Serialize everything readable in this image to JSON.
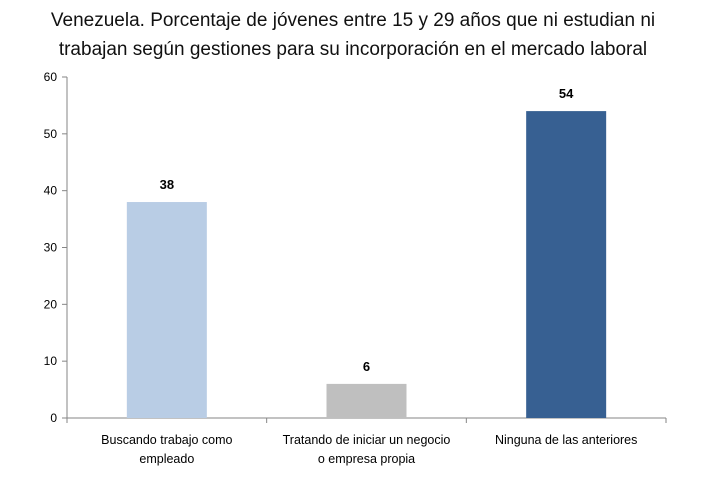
{
  "chart_data": {
    "type": "bar",
    "title_lines": [
      "Venezuela. Porcentaje de jóvenes entre 15 y 29 años que ni estudian ni",
      "trabajan según gestiones para su incorporación en el mercado laboral"
    ],
    "categories": [
      [
        "Buscando trabajo como",
        "empleado"
      ],
      [
        "Tratando de iniciar un negocio",
        "o empresa propia"
      ],
      [
        "Ninguna de las anteriores"
      ]
    ],
    "values": [
      38,
      6,
      54
    ],
    "data_labels": [
      "38",
      "6",
      "54"
    ],
    "colors": [
      "#b9cde5",
      "#bfbfbf",
      "#376092"
    ],
    "ylim": [
      0,
      60
    ],
    "yticks": [
      0,
      10,
      20,
      30,
      40,
      50,
      60
    ],
    "xlabel": "",
    "ylabel": "",
    "grid": false,
    "legend": "none"
  }
}
